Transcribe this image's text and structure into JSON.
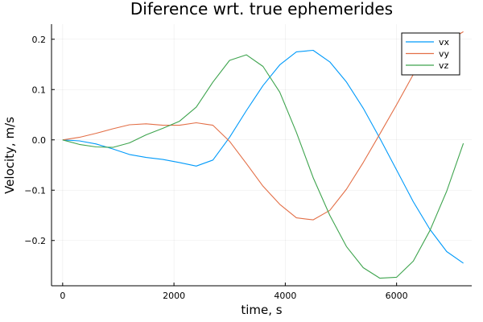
{
  "chart_data": {
    "type": "line",
    "title": "Diference wrt. true ephemerides",
    "xlabel": "time, s",
    "ylabel": "Velocity, m/s",
    "xlim": [
      -200,
      7350
    ],
    "ylim": [
      -0.29,
      0.23
    ],
    "xticks": [
      0,
      2000,
      4000,
      6000
    ],
    "xtick_labels": [
      "0",
      "2000",
      "4000",
      "6000"
    ],
    "yticks": [
      -0.2,
      -0.1,
      0.0,
      0.1,
      0.2
    ],
    "ytick_labels": [
      "−0.2",
      "−0.1",
      "0.0",
      "0.1",
      "0.2"
    ],
    "grid": true,
    "legend": "top-right",
    "x": [
      0,
      300,
      600,
      900,
      1200,
      1500,
      1800,
      2100,
      2400,
      2700,
      3000,
      3300,
      3600,
      3900,
      4200,
      4500,
      4800,
      5100,
      5400,
      5700,
      6000,
      6300,
      6600,
      6900,
      7200
    ],
    "series": [
      {
        "name": "vx",
        "color": "#009AFA",
        "values": [
          0.0,
          -0.002,
          -0.008,
          -0.018,
          -0.029,
          -0.035,
          -0.039,
          -0.045,
          -0.052,
          -0.04,
          0.005,
          0.058,
          0.108,
          0.149,
          0.175,
          0.178,
          0.155,
          0.115,
          0.063,
          0.003,
          -0.06,
          -0.123,
          -0.178,
          -0.222,
          -0.245
        ]
      },
      {
        "name": "vy",
        "color": "#E36F47",
        "values": [
          0.0,
          0.005,
          0.013,
          0.022,
          0.03,
          0.032,
          0.029,
          0.029,
          0.034,
          0.029,
          -0.003,
          -0.047,
          -0.092,
          -0.128,
          -0.155,
          -0.159,
          -0.14,
          -0.098,
          -0.045,
          0.012,
          0.07,
          0.13,
          0.158,
          0.195,
          0.215
        ]
      },
      {
        "name": "vz",
        "color": "#3EA44E",
        "values": [
          0.0,
          -0.009,
          -0.014,
          -0.015,
          -0.006,
          0.01,
          0.023,
          0.037,
          0.065,
          0.115,
          0.158,
          0.169,
          0.146,
          0.095,
          0.015,
          -0.075,
          -0.15,
          -0.212,
          -0.254,
          -0.275,
          -0.273,
          -0.241,
          -0.18,
          -0.102,
          -0.007
        ]
      }
    ]
  }
}
